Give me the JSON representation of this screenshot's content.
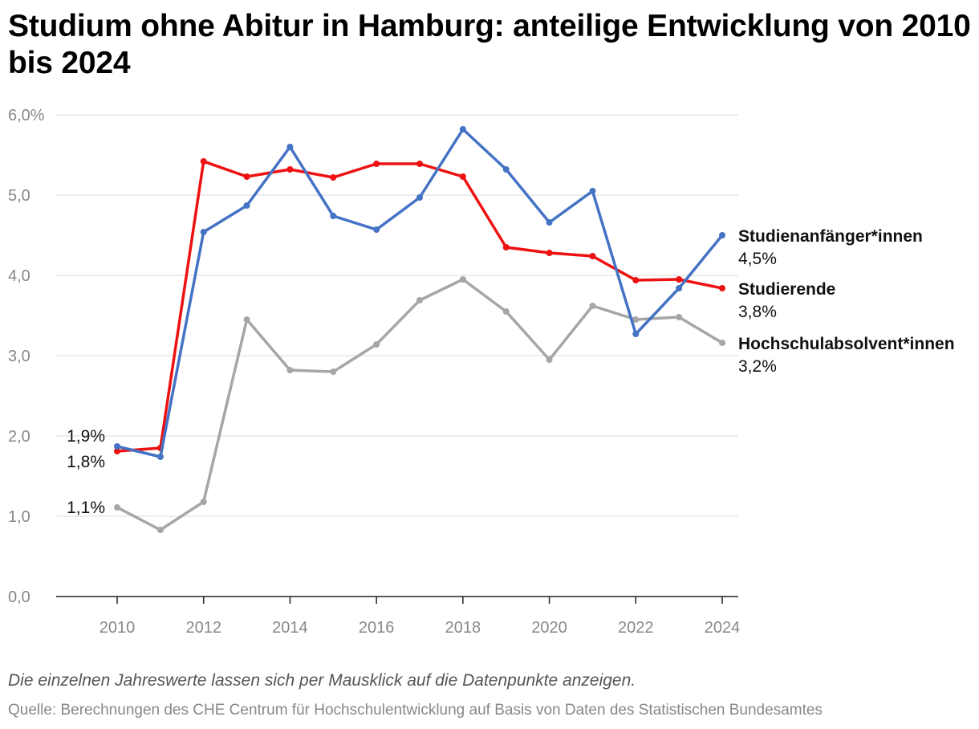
{
  "title": "Studium ohne Abitur in Hamburg: anteilige Entwicklung von 2010 bis 2024",
  "note": "Die einzelnen Jahreswerte lassen sich per Mausklick auf die Datenpunkte anzeigen.",
  "source": "Quelle: Berechnungen des CHE Centrum für Hochschulentwicklung auf Basis von Daten des Statistischen Bundesamtes",
  "chart_data": {
    "type": "line",
    "title": "Studium ohne Abitur in Hamburg: anteilige Entwicklung von 2010 bis 2024",
    "xlabel": "",
    "ylabel": "",
    "x": [
      2010,
      2011,
      2012,
      2013,
      2014,
      2015,
      2016,
      2017,
      2018,
      2019,
      2020,
      2021,
      2022,
      2023,
      2024
    ],
    "x_ticks": [
      "2010",
      "2012",
      "2014",
      "2016",
      "2018",
      "2020",
      "2022",
      "2024"
    ],
    "ylim": [
      0,
      6
    ],
    "y_ticks": [
      "0,0",
      "1,0",
      "2,0",
      "3,0",
      "4,0",
      "5,0",
      "6,0%"
    ],
    "grid": true,
    "series": [
      {
        "name": "Studierende",
        "color": "#ee1111",
        "values": [
          1.81,
          1.85,
          5.42,
          5.23,
          5.32,
          5.22,
          5.39,
          5.39,
          5.23,
          4.35,
          4.28,
          4.24,
          3.94,
          3.95,
          3.84
        ],
        "start_label": "1,8%",
        "end_label": "3,8%"
      },
      {
        "name": "Studienanfänger*innen",
        "color": "#4472c4",
        "values": [
          1.87,
          1.74,
          4.54,
          4.87,
          5.6,
          4.74,
          4.57,
          4.97,
          5.82,
          5.32,
          4.66,
          5.05,
          3.27,
          3.84,
          4.5
        ],
        "start_label": "1,9%",
        "end_label": "4,5%"
      },
      {
        "name": "Hochschulabsolvent*innen",
        "color": "#a6a6a6",
        "values": [
          1.11,
          0.83,
          1.18,
          3.45,
          2.82,
          2.8,
          3.14,
          3.69,
          3.95,
          3.55,
          2.95,
          3.62,
          3.45,
          3.48,
          3.16
        ],
        "start_label": "1,1%",
        "end_label": "3,2%"
      }
    ]
  }
}
